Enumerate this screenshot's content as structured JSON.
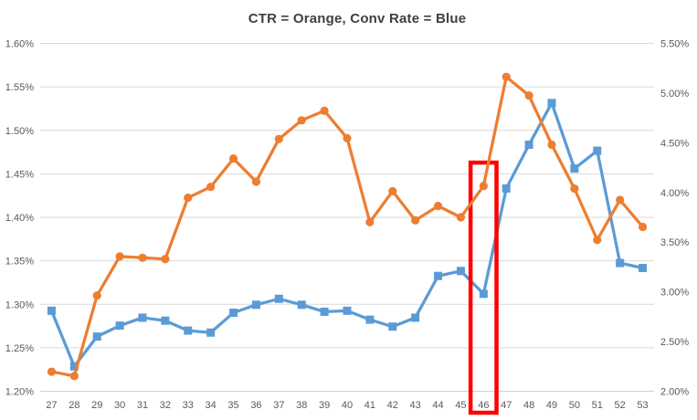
{
  "chart_title": "CTR = Orange, Conv Rate = Blue",
  "chart_data": {
    "type": "line",
    "title": "CTR = Orange, Conv Rate = Blue",
    "grid": true,
    "legend": "none",
    "categories": [
      "27",
      "28",
      "29",
      "30",
      "31",
      "32",
      "33",
      "34",
      "35",
      "36",
      "37",
      "38",
      "39",
      "40",
      "41",
      "42",
      "43",
      "44",
      "45",
      "46",
      "47",
      "48",
      "49",
      "50",
      "51",
      "52",
      "53"
    ],
    "series": [
      {
        "name": "CTR",
        "axis": "left",
        "color": "#ED7D31",
        "marker": "circle",
        "values": [
          1.2225,
          1.2175,
          1.31,
          1.355,
          1.3535,
          1.352,
          1.4225,
          1.435,
          1.4675,
          1.441,
          1.49,
          1.5115,
          1.5225,
          1.491,
          1.3945,
          1.43,
          1.3965,
          1.413,
          1.4,
          1.436,
          1.5615,
          1.54,
          1.4835,
          1.433,
          1.374,
          1.42,
          1.389
        ]
      },
      {
        "name": "Conv Rate",
        "axis": "right",
        "color": "#5B9BD5",
        "marker": "square",
        "values": [
          2.81,
          2.25,
          2.55,
          2.66,
          2.74,
          2.71,
          2.61,
          2.59,
          2.79,
          2.87,
          2.93,
          2.87,
          2.8,
          2.81,
          2.72,
          2.65,
          2.74,
          3.16,
          3.21,
          2.98,
          4.04,
          4.48,
          4.9,
          4.24,
          4.42,
          3.29,
          3.24
        ]
      }
    ],
    "left_axis": {
      "min": 1.2,
      "max": 1.6,
      "tick_labels": [
        "1.60%",
        "1.55%",
        "1.50%",
        "1.45%",
        "1.40%",
        "1.35%",
        "1.30%",
        "1.25%",
        "1.20%"
      ]
    },
    "right_axis": {
      "min": 2.0,
      "max": 5.5,
      "tick_labels": [
        "5.50%",
        "5.00%",
        "4.50%",
        "4.00%",
        "3.50%",
        "3.00%",
        "2.50%",
        "2.00%"
      ]
    },
    "annotation": {
      "type": "rectangle",
      "color": "#FF0000",
      "category": "46",
      "top_value_left_axis": 1.465,
      "extends_below_axis": true
    },
    "colors": {
      "gridline": "#D9D9D9",
      "axis_line": "#D0D0D0",
      "tick_label": "#595959",
      "title": "#404040",
      "background": "#FFFFFF"
    }
  }
}
